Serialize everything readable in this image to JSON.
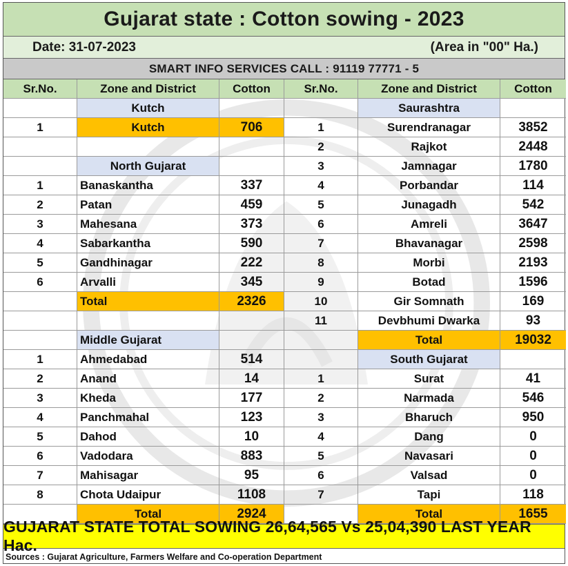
{
  "title": "Gujarat state : Cotton sowing - 2023",
  "date": "Date: 31-07-2023",
  "area_unit": "(Area in \"00\" Ha.)",
  "info_line": "SMART INFO SERVICES CALL : 91119 77771 - 5",
  "headers": {
    "sr_no": "Sr.No.",
    "zone_district": "Zone and District",
    "cotton": "Cotton"
  },
  "left": {
    "kutch": {
      "zone": "Kutch",
      "rows": [
        {
          "sr": "1",
          "district": "Kutch",
          "cotton": "706"
        }
      ]
    },
    "north_gujarat": {
      "zone": "North Gujarat",
      "rows": [
        {
          "sr": "1",
          "district": "Banaskantha",
          "cotton": "337"
        },
        {
          "sr": "2",
          "district": "Patan",
          "cotton": "459"
        },
        {
          "sr": "3",
          "district": "Mahesana",
          "cotton": "373"
        },
        {
          "sr": "4",
          "district": "Sabarkantha",
          "cotton": "590"
        },
        {
          "sr": "5",
          "district": "Gandhinagar",
          "cotton": "222"
        },
        {
          "sr": "6",
          "district": "Arvalli",
          "cotton": "345"
        }
      ],
      "total_label": "Total",
      "total": "2326"
    },
    "middle_gujarat": {
      "zone": "Middle Gujarat",
      "rows": [
        {
          "sr": "1",
          "district": "Ahmedabad",
          "cotton": "514"
        },
        {
          "sr": "2",
          "district": "Anand",
          "cotton": "14"
        },
        {
          "sr": "3",
          "district": "Kheda",
          "cotton": "177"
        },
        {
          "sr": "4",
          "district": "Panchmahal",
          "cotton": "123"
        },
        {
          "sr": "5",
          "district": "Dahod",
          "cotton": "10"
        },
        {
          "sr": "6",
          "district": "Vadodara",
          "cotton": "883"
        },
        {
          "sr": "7",
          "district": "Mahisagar",
          "cotton": "95"
        },
        {
          "sr": "8",
          "district": "Chota Udaipur",
          "cotton": "1108"
        }
      ],
      "total_label": "Total",
      "total": "2924"
    }
  },
  "right": {
    "saurashtra": {
      "zone": "Saurashtra",
      "rows": [
        {
          "sr": "1",
          "district": "Surendranagar",
          "cotton": "3852"
        },
        {
          "sr": "2",
          "district": "Rajkot",
          "cotton": "2448"
        },
        {
          "sr": "3",
          "district": "Jamnagar",
          "cotton": "1780"
        },
        {
          "sr": "4",
          "district": "Porbandar",
          "cotton": "114"
        },
        {
          "sr": "5",
          "district": "Junagadh",
          "cotton": "542"
        },
        {
          "sr": "6",
          "district": "Amreli",
          "cotton": "3647"
        },
        {
          "sr": "7",
          "district": "Bhavanagar",
          "cotton": "2598"
        },
        {
          "sr": "8",
          "district": "Morbi",
          "cotton": "2193"
        },
        {
          "sr": "9",
          "district": "Botad",
          "cotton": "1596"
        },
        {
          "sr": "10",
          "district": "Gir Somnath",
          "cotton": "169"
        },
        {
          "sr": "11",
          "district": "Devbhumi Dwarka",
          "cotton": "93"
        }
      ],
      "total_label": "Total",
      "total": "19032"
    },
    "south_gujarat": {
      "zone": "South Gujarat",
      "rows": [
        {
          "sr": "1",
          "district": "Surat",
          "cotton": "41"
        },
        {
          "sr": "2",
          "district": "Narmada",
          "cotton": "546"
        },
        {
          "sr": "3",
          "district": "Bharuch",
          "cotton": "950"
        },
        {
          "sr": "4",
          "district": "Dang",
          "cotton": "0"
        },
        {
          "sr": "5",
          "district": "Navasari",
          "cotton": "0"
        },
        {
          "sr": "6",
          "district": "Valsad",
          "cotton": "0"
        },
        {
          "sr": "7",
          "district": "Tapi",
          "cotton": "118"
        }
      ],
      "total_label": "Total",
      "total": "1655"
    }
  },
  "state_total_line": "GUJARAT STATE TOTAL SOWING 26,64,565 Vs 25,04,390 LAST YEAR Hac.",
  "sources": "Sources : Gujarat Agriculture, Farmers Welfare and Co-operation Department",
  "colors": {
    "title_bg": "#c6e0b4",
    "date_bg": "#e2efda",
    "info_bg": "#c9c9c9",
    "zone_bg": "#d9e1f2",
    "total_bg": "#ffc000",
    "state_total_bg": "#ffff00"
  }
}
